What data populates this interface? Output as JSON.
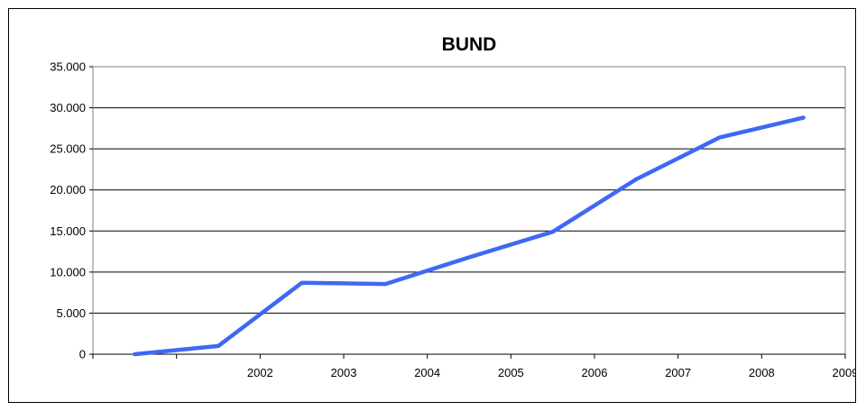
{
  "chart_data": {
    "type": "line",
    "title": "BUND",
    "xlabel": "",
    "ylabel": "",
    "categories": [
      "",
      "2002",
      "2003",
      "2004",
      "2005",
      "2006",
      "2007",
      "2008",
      "2009"
    ],
    "series": [
      {
        "values": [
          0,
          1000,
          8700,
          8550,
          11800,
          14900,
          21300,
          26400,
          28800
        ],
        "color": "#3f68f5"
      }
    ],
    "ylim": [
      0,
      35000
    ],
    "yticks": [
      0,
      5000,
      10000,
      15000,
      20000,
      25000,
      30000,
      35000
    ],
    "ytick_labels": [
      "0",
      "5.000",
      "10.000",
      "15.000",
      "20.000",
      "25.000",
      "30.000",
      "35.000"
    ],
    "grid": "horizontal",
    "legend": "none"
  }
}
